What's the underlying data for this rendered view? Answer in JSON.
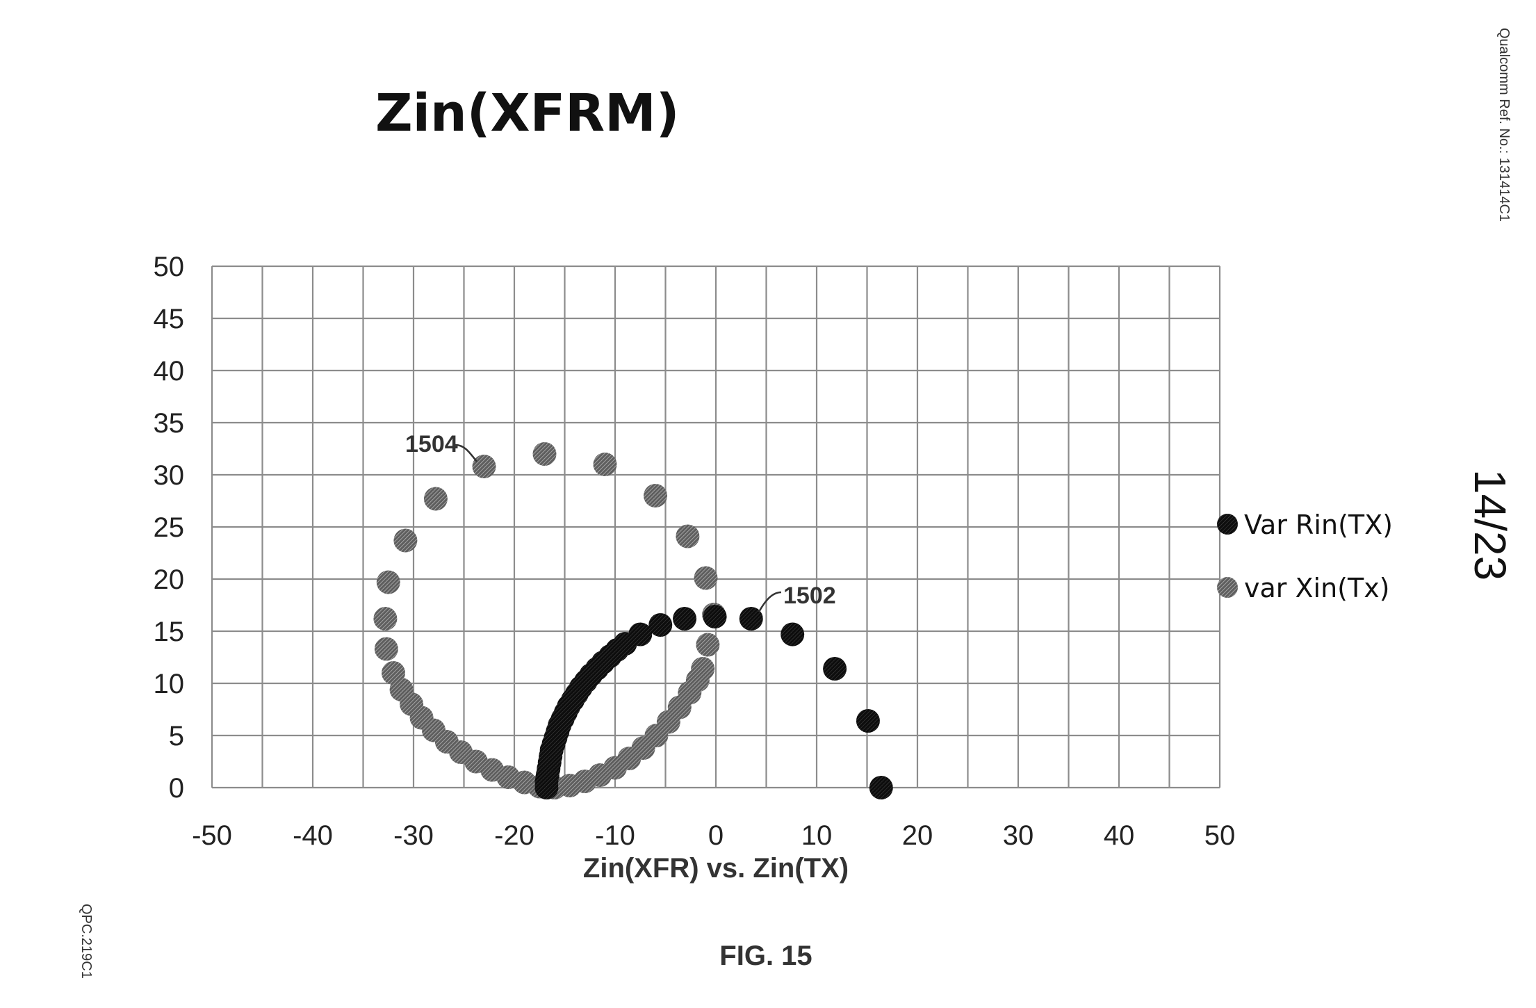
{
  "page": {
    "ref_number": "Qualcomm Ref. No.: 131414C1",
    "sheet_number": "14/23",
    "docket": "QPC.219C1",
    "figure_label": "FIG. 15"
  },
  "colors": {
    "series_rin": "#111111",
    "series_xin": "#7a7a7a",
    "grid": "#8c8c8c"
  },
  "chart_data": {
    "type": "scatter",
    "title": "Zin(XFRM)",
    "xlabel": "Zin(XFR) vs. Zin(TX)",
    "ylabel": "",
    "xlim": [
      -50,
      50
    ],
    "ylim": [
      0,
      50
    ],
    "x_ticks": [
      "-50",
      "-40",
      "-30",
      "-20",
      "-10",
      "0",
      "10",
      "20",
      "30",
      "40",
      "50"
    ],
    "y_ticks": [
      "0",
      "5",
      "10",
      "15",
      "20",
      "25",
      "30",
      "35",
      "40",
      "45",
      "50"
    ],
    "grid": true,
    "legend_position": "right",
    "annotations": [
      {
        "text": "1504",
        "x": -23,
        "y": 30.8
      },
      {
        "text": "1502",
        "x": 3.5,
        "y": 16.2
      }
    ],
    "series": [
      {
        "name": "Var Rin(TX)",
        "points": [
          [
            -16.8,
            0.0
          ],
          [
            -16.8,
            0.6
          ],
          [
            -16.7,
            1.2
          ],
          [
            -16.6,
            1.8
          ],
          [
            -16.5,
            2.4
          ],
          [
            -16.4,
            3.0
          ],
          [
            -16.3,
            3.6
          ],
          [
            -16.1,
            4.2
          ],
          [
            -15.9,
            4.8
          ],
          [
            -15.7,
            5.4
          ],
          [
            -15.5,
            6.0
          ],
          [
            -15.2,
            6.6
          ],
          [
            -14.9,
            7.2
          ],
          [
            -14.6,
            7.8
          ],
          [
            -14.2,
            8.4
          ],
          [
            -13.8,
            9.0
          ],
          [
            -13.4,
            9.6
          ],
          [
            -12.9,
            10.2
          ],
          [
            -12.4,
            10.8
          ],
          [
            -11.8,
            11.4
          ],
          [
            -11.2,
            12.0
          ],
          [
            -10.5,
            12.6
          ],
          [
            -9.8,
            13.2
          ],
          [
            -9.0,
            13.8
          ],
          [
            -7.5,
            14.7
          ],
          [
            -5.5,
            15.6
          ],
          [
            -3.1,
            16.2
          ],
          [
            -0.1,
            16.4
          ],
          [
            3.5,
            16.2
          ],
          [
            7.6,
            14.7
          ],
          [
            11.8,
            11.4
          ],
          [
            15.1,
            6.4
          ],
          [
            16.4,
            0.0
          ]
        ]
      },
      {
        "name": "var Xin(Tx)",
        "points": [
          [
            -17.0,
            32.0
          ],
          [
            -11.0,
            31.0
          ],
          [
            -23.0,
            30.8
          ],
          [
            -6.0,
            28.0
          ],
          [
            -27.8,
            27.7
          ],
          [
            -30.8,
            23.7
          ],
          [
            -2.8,
            24.1
          ],
          [
            -1.0,
            20.1
          ],
          [
            -32.5,
            19.7
          ],
          [
            -0.2,
            16.6
          ],
          [
            -32.8,
            16.2
          ],
          [
            -32.7,
            13.3
          ],
          [
            -0.8,
            13.7
          ],
          [
            -32.0,
            11.0
          ],
          [
            -1.3,
            11.4
          ],
          [
            -31.2,
            9.4
          ],
          [
            -30.2,
            8.0
          ],
          [
            -29.2,
            6.7
          ],
          [
            -28.0,
            5.5
          ],
          [
            -26.7,
            4.4
          ],
          [
            -25.3,
            3.4
          ],
          [
            -23.8,
            2.5
          ],
          [
            -22.2,
            1.7
          ],
          [
            -20.6,
            1.0
          ],
          [
            -19.0,
            0.5
          ],
          [
            -17.5,
            0.1
          ],
          [
            -16.0,
            0.0
          ],
          [
            -14.5,
            0.2
          ],
          [
            -13.0,
            0.6
          ],
          [
            -11.5,
            1.2
          ],
          [
            -10.0,
            1.9
          ],
          [
            -8.6,
            2.8
          ],
          [
            -7.2,
            3.8
          ],
          [
            -5.9,
            5.0
          ],
          [
            -4.7,
            6.3
          ],
          [
            -3.6,
            7.7
          ],
          [
            -2.6,
            9.1
          ],
          [
            -1.8,
            10.3
          ]
        ]
      }
    ]
  }
}
